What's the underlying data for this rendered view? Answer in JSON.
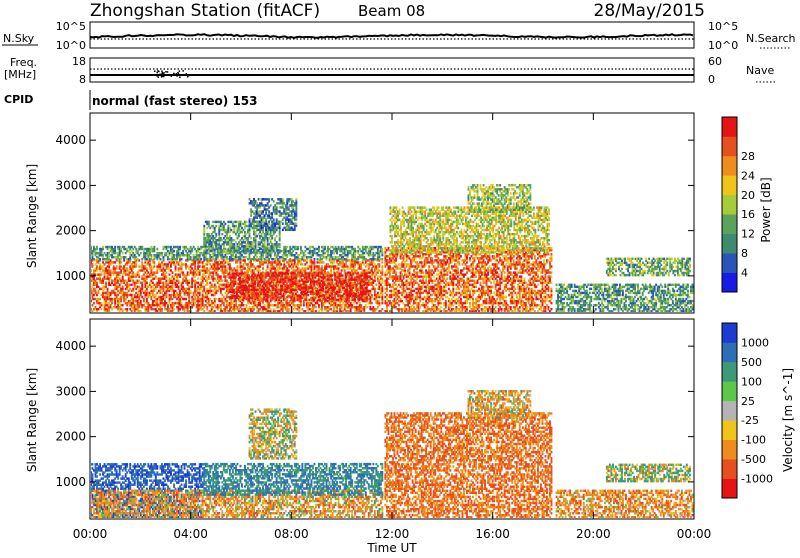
{
  "header": {
    "station": "Zhongshan Station (fitACF)",
    "beam": "Beam 08",
    "date": "28/May/2015"
  },
  "summary_panels": {
    "nsky": {
      "label": "N.Sky",
      "tick_top": "10^5",
      "tick_bottom": "10^0",
      "right_label": "N.Search",
      "right_tick_top": "10^5",
      "right_tick_bottom": "10^0"
    },
    "freq": {
      "label_line1": "Freq.",
      "label_line2": "[MHz]",
      "tick_top": "18",
      "tick_bottom": "8",
      "right_label": "Nave",
      "right_tick_top": "60",
      "right_tick_bottom": "0"
    },
    "cpid": {
      "label": "CPID",
      "text": "normal (fast stereo) 153"
    }
  },
  "chart_data": [
    {
      "type": "heatmap",
      "title": "",
      "quantity": "Power",
      "xlabel": "",
      "ylabel": "Slant Range [km]",
      "x_ticks": [
        "00:00",
        "04:00",
        "08:00",
        "12:00",
        "16:00",
        "20:00",
        "00:00"
      ],
      "xlim_hours": [
        0,
        24
      ],
      "y_ticks": [
        1000,
        2000,
        3000,
        4000
      ],
      "ylim_km": [
        180,
        4600
      ],
      "colorbar": {
        "label": "Power [dB]",
        "ticks": [
          4,
          8,
          12,
          16,
          20,
          24,
          28
        ],
        "range": [
          0,
          30
        ],
        "colors": [
          "#1a1ae6",
          "#2a55b8",
          "#3d8a6e",
          "#5aa35a",
          "#a6cc3a",
          "#f0c419",
          "#f08c1e",
          "#e6501e",
          "#e61414"
        ]
      },
      "echo_regions": [
        {
          "t0": 0.0,
          "t1": 11.6,
          "r0": 200,
          "r1": 1350,
          "level": 24
        },
        {
          "t0": 5.5,
          "t1": 11.0,
          "r0": 450,
          "r1": 1050,
          "level": 28
        },
        {
          "t0": 0.0,
          "t1": 11.6,
          "r0": 1350,
          "r1": 1650,
          "level": 10
        },
        {
          "t0": 4.5,
          "t1": 7.5,
          "r0": 1500,
          "r1": 2200,
          "level": 10
        },
        {
          "t0": 6.3,
          "t1": 8.2,
          "r0": 2000,
          "r1": 2700,
          "level": 8
        },
        {
          "t0": 11.7,
          "t1": 18.3,
          "r0": 200,
          "r1": 1600,
          "level": 24
        },
        {
          "t0": 11.9,
          "t1": 18.2,
          "r0": 1500,
          "r1": 2500,
          "level": 16
        },
        {
          "t0": 15.0,
          "t1": 17.5,
          "r0": 2400,
          "r1": 3000,
          "level": 14
        },
        {
          "t0": 18.5,
          "t1": 23.9,
          "r0": 200,
          "r1": 800,
          "level": 10
        },
        {
          "t0": 20.5,
          "t1": 23.8,
          "r0": 1000,
          "r1": 1400,
          "level": 12
        }
      ]
    },
    {
      "type": "heatmap",
      "title": "",
      "quantity": "Velocity",
      "xlabel": "Time UT",
      "ylabel": "Slant Range [km]",
      "x_ticks": [
        "00:00",
        "04:00",
        "08:00",
        "12:00",
        "16:00",
        "20:00",
        "00:00"
      ],
      "xlim_hours": [
        0,
        24
      ],
      "y_ticks": [
        1000,
        2000,
        3000,
        4000
      ],
      "ylim_km": [
        180,
        4600
      ],
      "colorbar": {
        "label": "Velocity [m s^-1]",
        "ticks": [
          "1000",
          "500",
          "100",
          "25",
          "-25",
          "-100",
          "-500",
          "-1000"
        ],
        "colors": [
          "#1a3cd2",
          "#2e6eb4",
          "#3d9a78",
          "#5cc84a",
          "#b4b4b4",
          "#f0c419",
          "#f08c1e",
          "#e6501e",
          "#e61414"
        ]
      },
      "echo_regions": [
        {
          "t0": 0.0,
          "t1": 4.5,
          "r0": 200,
          "r1": 1400,
          "level": 700
        },
        {
          "t0": 0.0,
          "t1": 11.6,
          "r0": 200,
          "r1": 800,
          "level": -150
        },
        {
          "t0": 4.5,
          "t1": 11.6,
          "r0": 700,
          "r1": 1400,
          "level": 300
        },
        {
          "t0": 6.3,
          "t1": 8.2,
          "r0": 1500,
          "r1": 2600,
          "level": 0
        },
        {
          "t0": 11.7,
          "t1": 18.3,
          "r0": 200,
          "r1": 2500,
          "level": -300
        },
        {
          "t0": 15.0,
          "t1": 17.5,
          "r0": 2400,
          "r1": 3000,
          "level": -120
        },
        {
          "t0": 18.5,
          "t1": 23.9,
          "r0": 200,
          "r1": 800,
          "level": -200
        },
        {
          "t0": 20.5,
          "t1": 23.8,
          "r0": 1000,
          "r1": 1400,
          "level": 50
        }
      ]
    }
  ]
}
